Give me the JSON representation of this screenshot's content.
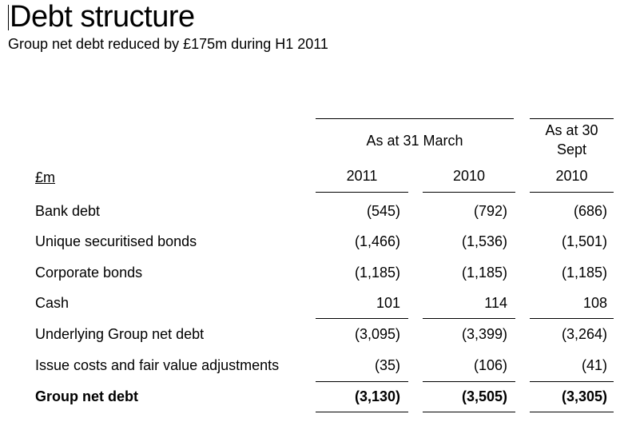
{
  "slide": {
    "title": "Debt structure",
    "subtitle": "Group net debt reduced by £175m during H1 2011"
  },
  "table": {
    "unit_label": "£m",
    "group_headers": [
      "As at 31 March",
      "As at 30 Sept"
    ],
    "years": [
      "2011",
      "2010",
      "2010"
    ],
    "rows": [
      {
        "label": "Bank debt",
        "values": [
          "(545)",
          "(792)",
          "(686)"
        ]
      },
      {
        "label": "Unique securitised bonds",
        "values": [
          "(1,466)",
          "(1,536)",
          "(1,501)"
        ]
      },
      {
        "label": "Corporate bonds",
        "values": [
          "(1,185)",
          "(1,185)",
          "(1,185)"
        ]
      },
      {
        "label": "Cash",
        "values": [
          "101",
          "114",
          "108"
        ]
      },
      {
        "label": "Underlying Group net debt",
        "values": [
          "(3,095)",
          "(3,399)",
          "(3,264)"
        ]
      },
      {
        "label": "Issue costs and fair value adjustments",
        "values": [
          "(35)",
          "(106)",
          "(41)"
        ]
      },
      {
        "label": "Group net debt",
        "values": [
          "(3,130)",
          "(3,505)",
          "(3,305)"
        ],
        "bold": true
      }
    ]
  }
}
